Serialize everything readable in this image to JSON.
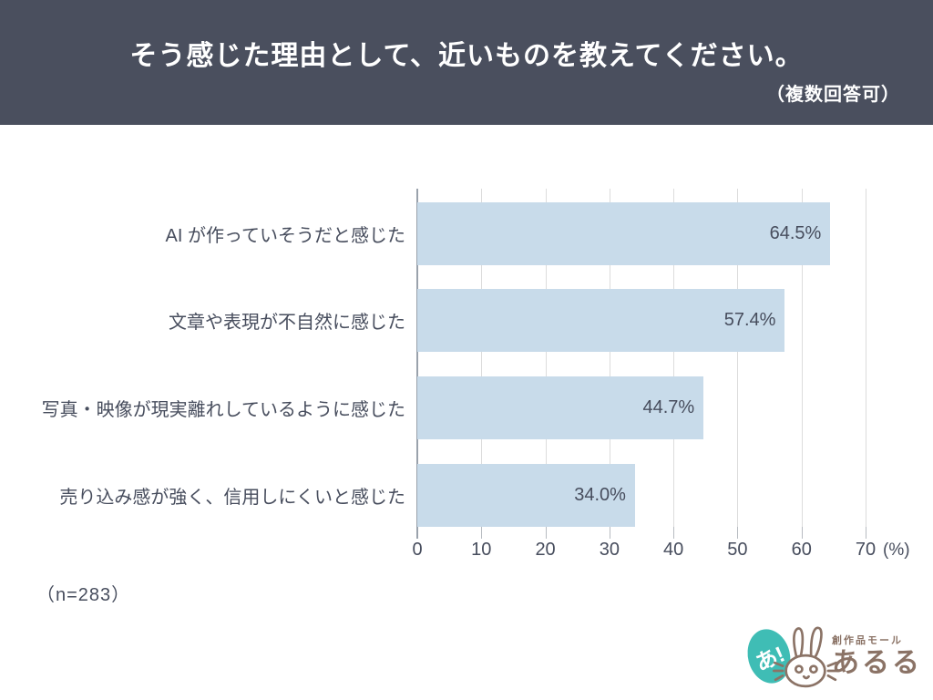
{
  "header": {
    "title": "そう感じた理由として、近いものを教えてください。",
    "note": "（複数回答可）",
    "bg_color": "#4a4f5e",
    "text_color": "#ffffff"
  },
  "chart_data": {
    "type": "bar",
    "orientation": "horizontal",
    "categories": [
      "AI が作っていそうだと感じた",
      "文章や表現が不自然に感じた",
      "写真・映像が現実離れしているように感じた",
      "売り込み感が強く、信用しにくいと感じた"
    ],
    "values": [
      64.5,
      57.4,
      44.7,
      34.0
    ],
    "value_labels": [
      "64.5%",
      "57.4%",
      "44.7%",
      "34.0%"
    ],
    "xlim": [
      0,
      70
    ],
    "xticks": [
      0,
      10,
      20,
      30,
      40,
      50,
      60,
      70
    ],
    "x_unit": "(%)",
    "bar_color": "#c8dbea",
    "gridline_color": "#dcdcdc",
    "axis_color": "#9aa2ac",
    "text_color": "#474d5d",
    "grid": true,
    "legend": false,
    "title": "",
    "xlabel": "",
    "ylabel": ""
  },
  "footer": {
    "sample_size": "（n=283）"
  },
  "logo": {
    "badge_text": "あ!",
    "tagline": "創作品モール",
    "brand": "あるる",
    "teal": "#3fbdb5",
    "brown": "#8b7366"
  }
}
